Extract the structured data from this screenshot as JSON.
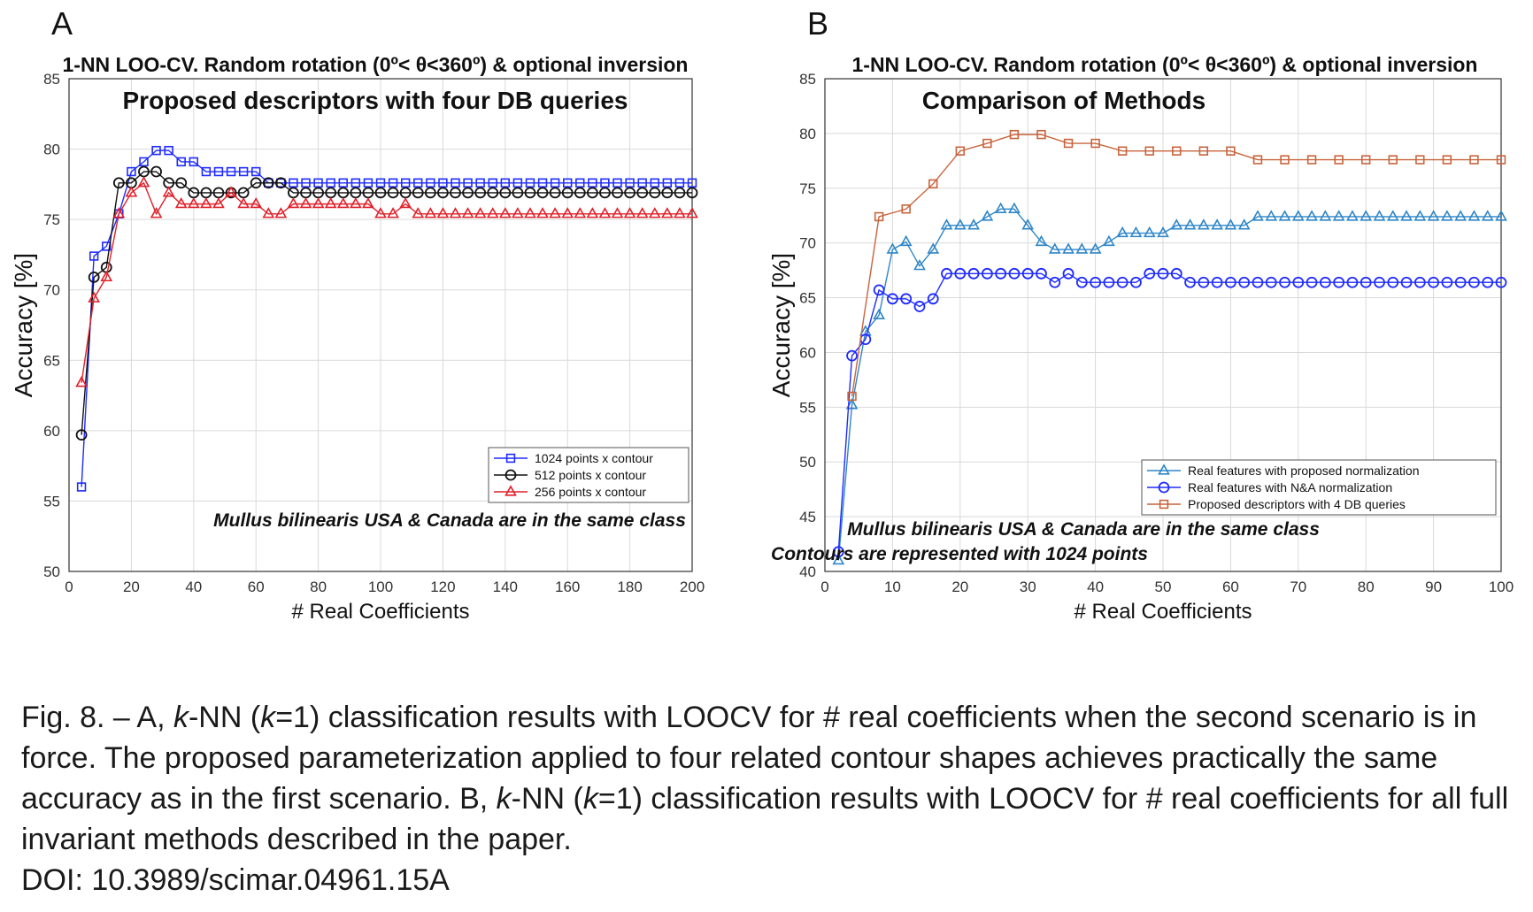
{
  "panels": {
    "a_letter": "A",
    "b_letter": "B"
  },
  "caption": {
    "prefix": "Fig. 8. – A, ",
    "k1": "k",
    "m1": "-NN (",
    "k2": "k",
    "m2": "=1) classification results with LOOCV for # real coefficients when the second scenario is in force. The proposed parameterization applied to four related contour shapes achieves practically the same accuracy as in the first scenario. B, ",
    "k3": "k",
    "m3": "-NN (",
    "k4": "k",
    "m4": "=1) classification results with LOOCV for # real coefficients for all full invariant methods described in the paper.",
    "doi": "DOI: 10.3989/scimar.04961.15A"
  },
  "chart_data": [
    {
      "type": "line",
      "title": "1-NN  LOO-CV. Random rotation (0º< θ<360º) & optional inversion",
      "subtitle": "Proposed descriptors with four DB queries",
      "xlabel": "# Real Coefficients",
      "ylabel": "Accuracy [%]",
      "xlim": [
        0,
        200
      ],
      "ylim": [
        50,
        85
      ],
      "xticks": [
        0,
        20,
        40,
        60,
        80,
        100,
        120,
        140,
        160,
        180,
        200
      ],
      "yticks": [
        50,
        55,
        60,
        65,
        70,
        75,
        80,
        85
      ],
      "grid": true,
      "legend_position": "bottom-right",
      "annotations": [
        "Mullus bilinearis USA & Canada are in the same class"
      ],
      "x": [
        4,
        8,
        12,
        16,
        20,
        24,
        28,
        32,
        36,
        40,
        44,
        48,
        52,
        56,
        60,
        64,
        68,
        72,
        76,
        80,
        84,
        88,
        92,
        96,
        100,
        104,
        108,
        112,
        116,
        120,
        124,
        128,
        132,
        136,
        140,
        144,
        148,
        152,
        156,
        160,
        164,
        168,
        172,
        176,
        180,
        184,
        188,
        192,
        196,
        200
      ],
      "series": [
        {
          "name": "1024 points x contour",
          "color": "#1f2bff",
          "marker": "square",
          "values": [
            56.0,
            72.4,
            73.1,
            75.4,
            78.4,
            79.1,
            79.9,
            79.9,
            79.1,
            79.1,
            78.4,
            78.4,
            78.4,
            78.4,
            78.4,
            77.6,
            77.6,
            77.6,
            77.6,
            77.6,
            77.6,
            77.6,
            77.6,
            77.6,
            77.6,
            77.6,
            77.6,
            77.6,
            77.6,
            77.6,
            77.6,
            77.6,
            77.6,
            77.6,
            77.6,
            77.6,
            77.6,
            77.6,
            77.6,
            77.6,
            77.6,
            77.6,
            77.6,
            77.6,
            77.6,
            77.6,
            77.6,
            77.6,
            77.6,
            77.6
          ]
        },
        {
          "name": "512 points x contour",
          "color": "#111111",
          "marker": "circle",
          "values": [
            59.7,
            70.9,
            71.6,
            77.6,
            77.6,
            78.4,
            78.4,
            77.6,
            77.6,
            76.9,
            76.9,
            76.9,
            76.9,
            76.9,
            77.6,
            77.6,
            77.6,
            76.9,
            76.9,
            76.9,
            76.9,
            76.9,
            76.9,
            76.9,
            76.9,
            76.9,
            76.9,
            76.9,
            76.9,
            76.9,
            76.9,
            76.9,
            76.9,
            76.9,
            76.9,
            76.9,
            76.9,
            76.9,
            76.9,
            76.9,
            76.9,
            76.9,
            76.9,
            76.9,
            76.9,
            76.9,
            76.9,
            76.9,
            76.9,
            76.9
          ]
        },
        {
          "name": "256 points x contour",
          "color": "#e0202a",
          "marker": "triangle",
          "values": [
            63.4,
            69.4,
            70.9,
            75.4,
            76.9,
            77.6,
            75.4,
            76.9,
            76.1,
            76.1,
            76.1,
            76.1,
            76.9,
            76.1,
            76.1,
            75.4,
            75.4,
            76.1,
            76.1,
            76.1,
            76.1,
            76.1,
            76.1,
            76.1,
            75.4,
            75.4,
            76.1,
            75.4,
            75.4,
            75.4,
            75.4,
            75.4,
            75.4,
            75.4,
            75.4,
            75.4,
            75.4,
            75.4,
            75.4,
            75.4,
            75.4,
            75.4,
            75.4,
            75.4,
            75.4,
            75.4,
            75.4,
            75.4,
            75.4,
            75.4
          ]
        }
      ]
    },
    {
      "type": "line",
      "title": "1-NN  LOO-CV. Random rotation (0º< θ<360º) & optional inversion",
      "subtitle": "Comparison of Methods",
      "xlabel": "# Real Coefficients",
      "ylabel": "Accuracy [%]",
      "xlim": [
        0,
        100
      ],
      "ylim": [
        40,
        85
      ],
      "xticks": [
        0,
        10,
        20,
        30,
        40,
        50,
        60,
        70,
        80,
        90,
        100
      ],
      "yticks": [
        40,
        45,
        50,
        55,
        60,
        65,
        70,
        75,
        80,
        85
      ],
      "grid": true,
      "legend_position": "bottom-right",
      "annotations": [
        "Mullus bilinearis USA & Canada are in the same class",
        "Contours are represented with 1024 points"
      ],
      "series": [
        {
          "name": "Real features with proposed normalization",
          "color": "#2f86c8",
          "marker": "triangle",
          "x": [
            2,
            4,
            6,
            8,
            10,
            12,
            14,
            16,
            18,
            20,
            22,
            24,
            26,
            28,
            30,
            32,
            34,
            36,
            38,
            40,
            42,
            44,
            46,
            48,
            50,
            52,
            54,
            56,
            58,
            60,
            62,
            64,
            66,
            68,
            70,
            72,
            74,
            76,
            78,
            80,
            82,
            84,
            86,
            88,
            90,
            92,
            94,
            96,
            98,
            100
          ],
          "values": [
            41.0,
            55.2,
            61.9,
            63.4,
            69.4,
            70.1,
            67.9,
            69.4,
            71.6,
            71.6,
            71.6,
            72.4,
            73.1,
            73.1,
            71.6,
            70.1,
            69.4,
            69.4,
            69.4,
            69.4,
            70.1,
            70.9,
            70.9,
            70.9,
            70.9,
            71.6,
            71.6,
            71.6,
            71.6,
            71.6,
            71.6,
            72.4,
            72.4,
            72.4,
            72.4,
            72.4,
            72.4,
            72.4,
            72.4,
            72.4,
            72.4,
            72.4,
            72.4,
            72.4,
            72.4,
            72.4,
            72.4,
            72.4,
            72.4,
            72.4
          ]
        },
        {
          "name": "Real features with N&A normalization",
          "color": "#1f2bff",
          "marker": "circle",
          "x": [
            2,
            4,
            6,
            8,
            10,
            12,
            14,
            16,
            18,
            20,
            22,
            24,
            26,
            28,
            30,
            32,
            34,
            36,
            38,
            40,
            42,
            44,
            46,
            48,
            50,
            52,
            54,
            56,
            58,
            60,
            62,
            64,
            66,
            68,
            70,
            72,
            74,
            76,
            78,
            80,
            82,
            84,
            86,
            88,
            90,
            92,
            94,
            96,
            98,
            100
          ],
          "values": [
            41.8,
            59.7,
            61.2,
            65.7,
            64.9,
            64.9,
            64.2,
            64.9,
            67.2,
            67.2,
            67.2,
            67.2,
            67.2,
            67.2,
            67.2,
            67.2,
            66.4,
            67.2,
            66.4,
            66.4,
            66.4,
            66.4,
            66.4,
            67.2,
            67.2,
            67.2,
            66.4,
            66.4,
            66.4,
            66.4,
            66.4,
            66.4,
            66.4,
            66.4,
            66.4,
            66.4,
            66.4,
            66.4,
            66.4,
            66.4,
            66.4,
            66.4,
            66.4,
            66.4,
            66.4,
            66.4,
            66.4,
            66.4,
            66.4,
            66.4
          ]
        },
        {
          "name": "Proposed descriptors with 4 DB queries",
          "color": "#c8643c",
          "marker": "square",
          "x": [
            4,
            8,
            12,
            16,
            20,
            24,
            28,
            32,
            36,
            40,
            44,
            48,
            52,
            56,
            60,
            64,
            68,
            72,
            76,
            80,
            84,
            88,
            92,
            96,
            100
          ],
          "values": [
            56.0,
            72.4,
            73.1,
            75.4,
            78.4,
            79.1,
            79.9,
            79.9,
            79.1,
            79.1,
            78.4,
            78.4,
            78.4,
            78.4,
            78.4,
            77.6,
            77.6,
            77.6,
            77.6,
            77.6,
            77.6,
            77.6,
            77.6,
            77.6,
            77.6
          ]
        }
      ]
    }
  ]
}
